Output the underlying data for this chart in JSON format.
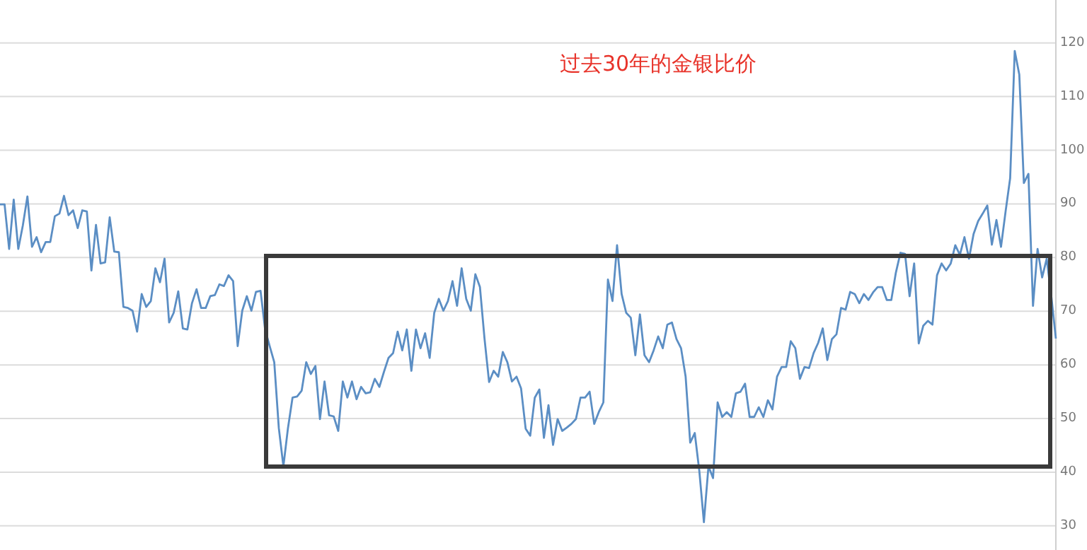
{
  "chart_data": {
    "type": "line",
    "title": "过去30年的金银比价",
    "categories": [
      null,
      null,
      null,
      null,
      null,
      null,
      null,
      null,
      null,
      null,
      null,
      null,
      null,
      null,
      null,
      null,
      null,
      null,
      null,
      null,
      null,
      null,
      null,
      null,
      null,
      null,
      null,
      null,
      null,
      null,
      null,
      null,
      null,
      null,
      null,
      null,
      null,
      null,
      null,
      null,
      null,
      null,
      null,
      null,
      null,
      null,
      null,
      null,
      null,
      null,
      null,
      null,
      null,
      null,
      null,
      null,
      null,
      null,
      null,
      null,
      null,
      null,
      null,
      null,
      null,
      null,
      null,
      null,
      null,
      null,
      null,
      null,
      null,
      null,
      null,
      null,
      null,
      null,
      null,
      null,
      null,
      null,
      null,
      null,
      null,
      null,
      null,
      null,
      null,
      null,
      null,
      null,
      null,
      null,
      null,
      null,
      null,
      null,
      null,
      null,
      null,
      null,
      null,
      null,
      null,
      null,
      null,
      null,
      null,
      null,
      null,
      null,
      null,
      null,
      null,
      null,
      null,
      null,
      null,
      null,
      null,
      null,
      null,
      null,
      null,
      null,
      null,
      null,
      null,
      null,
      null,
      null,
      null,
      null,
      null,
      null,
      null,
      null,
      null,
      null,
      null,
      null,
      null,
      null,
      null,
      null,
      null,
      null,
      null,
      null,
      null,
      null,
      null,
      null,
      null,
      null,
      null,
      null,
      null,
      null,
      null,
      null,
      null,
      null,
      null,
      null,
      null,
      null,
      null,
      null,
      null,
      null,
      null,
      null,
      null,
      null,
      null,
      null,
      null,
      null,
      null,
      null,
      null,
      null,
      null,
      null,
      null,
      null,
      null,
      null,
      null,
      null,
      null,
      null,
      null,
      null,
      null,
      null,
      null,
      null,
      null,
      null,
      null,
      null,
      null,
      null,
      null,
      null,
      null,
      null,
      null,
      null,
      null,
      null,
      null,
      null,
      null,
      null,
      null,
      null,
      null,
      null,
      null,
      null,
      null,
      null,
      null,
      null,
      null,
      null,
      null,
      null
    ],
    "series": [
      {
        "color": "#5b8ec4",
        "values": [
          89.9,
          89.9,
          81.6,
          90.8,
          81.6,
          86.0,
          91.4,
          82.0,
          83.8,
          81.0,
          82.9,
          82.9,
          87.7,
          88.2,
          91.5,
          87.9,
          88.8,
          85.5,
          88.8,
          88.6,
          77.6,
          86.1,
          78.9,
          79.1,
          87.5,
          81.1,
          81.0,
          70.8,
          70.6,
          70.1,
          66.2,
          73.2,
          70.8,
          71.9,
          78.0,
          75.4,
          79.8,
          67.9,
          69.7,
          73.7,
          66.8,
          66.6,
          71.5,
          74.1,
          70.6,
          70.6,
          72.8,
          73.0,
          75.0,
          74.7,
          76.7,
          75.6,
          63.5,
          70.1,
          72.8,
          70.1,
          73.6,
          73.8,
          66.6,
          63.5,
          60.5,
          48.2,
          41.1,
          48.2,
          53.9,
          54.1,
          55.2,
          60.5,
          58.3,
          59.8,
          49.9,
          56.9,
          50.6,
          50.4,
          47.7,
          56.9,
          53.9,
          56.9,
          53.6,
          55.9,
          54.7,
          54.9,
          57.4,
          55.9,
          58.7,
          61.3,
          62.2,
          66.2,
          62.7,
          66.6,
          58.9,
          66.6,
          63.1,
          65.9,
          61.3,
          69.7,
          72.3,
          70.1,
          71.9,
          75.6,
          71.0,
          78.0,
          72.3,
          70.1,
          76.9,
          74.5,
          64.9,
          56.8,
          58.9,
          57.8,
          62.4,
          60.5,
          56.9,
          57.8,
          55.6,
          48.1,
          46.8,
          53.9,
          55.4,
          46.4,
          52.5,
          45.1,
          49.9,
          47.7,
          48.3,
          49.0,
          49.9,
          53.9,
          53.9,
          55.0,
          49.0,
          51.2,
          53.0,
          75.9,
          71.9,
          82.3,
          73.2,
          69.7,
          68.8,
          61.8,
          69.4,
          61.8,
          60.5,
          62.7,
          65.3,
          63.1,
          67.5,
          67.9,
          64.8,
          63.1,
          57.8,
          45.5,
          47.3,
          40.2,
          30.7,
          41.1,
          38.9,
          53.0,
          50.3,
          51.2,
          50.3,
          54.7,
          55.0,
          56.5,
          50.3,
          50.3,
          52.1,
          50.3,
          53.4,
          51.7,
          57.8,
          59.6,
          59.6,
          64.4,
          63.1,
          57.4,
          59.6,
          59.4,
          62.2,
          64.1,
          66.8,
          60.9,
          64.8,
          65.7,
          70.6,
          70.3,
          73.6,
          73.2,
          71.5,
          73.2,
          72.1,
          73.5,
          74.5,
          74.5,
          72.1,
          72.1,
          77.2,
          80.9,
          80.7,
          72.8,
          78.9,
          64.0,
          67.3,
          68.2,
          67.5,
          76.7,
          78.9,
          77.6,
          78.9,
          82.3,
          80.5,
          83.8,
          79.8,
          84.4,
          86.8,
          88.2,
          89.7,
          82.4,
          87.0,
          82.0,
          88.6,
          94.8,
          118.5,
          114.1,
          93.9,
          95.6,
          71.0,
          81.6,
          76.3,
          79.8,
          72.8,
          64.9
        ]
      }
    ],
    "ylim": [
      25.5,
      128
    ],
    "yticks": [
      30,
      40,
      50,
      60,
      70,
      80,
      90,
      100,
      110,
      120
    ],
    "grid": "y",
    "marker": "none",
    "line_style": "solid",
    "tick_labels": "y"
  }
}
